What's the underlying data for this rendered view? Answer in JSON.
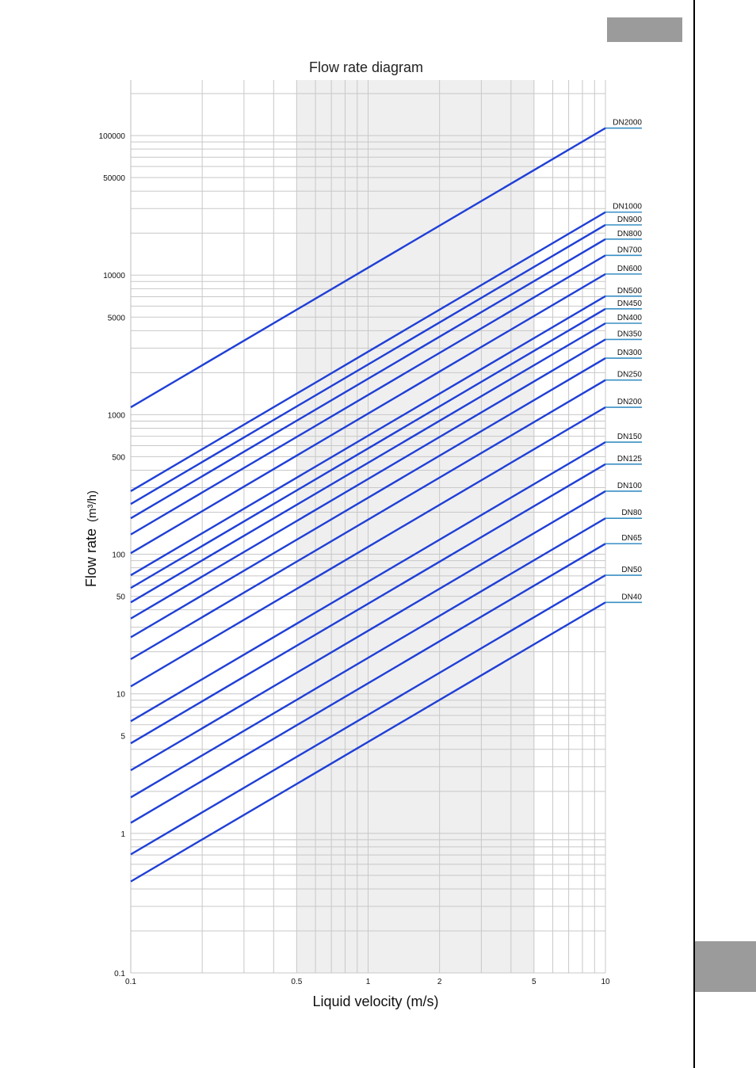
{
  "page": {
    "tab_color": "#9b9b9b"
  },
  "chart_data": {
    "type": "line",
    "title": "Flow rate diagram",
    "xlabel": "Liquid velocity (m/s)",
    "ylabel": "Flow rate",
    "ylabel_unit": "(m³/h)",
    "x_scale": "log",
    "y_scale": "log",
    "xlim": [
      0.1,
      10
    ],
    "ylim": [
      0.1,
      250000
    ],
    "x_ticks": [
      {
        "value": 0.1,
        "label": "0.1"
      },
      {
        "value": 0.5,
        "label": "0.5"
      },
      {
        "value": 1,
        "label": "1"
      },
      {
        "value": 2,
        "label": "2"
      },
      {
        "value": 5,
        "label": "5"
      },
      {
        "value": 10,
        "label": "10"
      }
    ],
    "y_ticks": [
      {
        "value": 0.1,
        "label": "0.1"
      },
      {
        "value": 1,
        "label": "1"
      },
      {
        "value": 5,
        "label": "5"
      },
      {
        "value": 10,
        "label": "10"
      },
      {
        "value": 50,
        "label": "50"
      },
      {
        "value": 100,
        "label": "100"
      },
      {
        "value": 500,
        "label": "500"
      },
      {
        "value": 1000,
        "label": "1000"
      },
      {
        "value": 5000,
        "label": "5000"
      },
      {
        "value": 10000,
        "label": "10000"
      },
      {
        "value": 50000,
        "label": "50000"
      },
      {
        "value": 100000,
        "label": "100000"
      }
    ],
    "grid": true,
    "highlight_band": {
      "x_from": 0.5,
      "x_to": 5,
      "color": "#efefef"
    },
    "line_color": "#1f3fd6",
    "label_underline_color": "#3a8fc4",
    "series": [
      {
        "name": "DN2000",
        "values": [
          1130,
          113100
        ]
      },
      {
        "name": "DN1000",
        "values": [
          283,
          28270
        ]
      },
      {
        "name": "DN900",
        "values": [
          229,
          22900
        ]
      },
      {
        "name": "DN800",
        "values": [
          181,
          18100
        ]
      },
      {
        "name": "DN700",
        "values": [
          138.5,
          13850
        ]
      },
      {
        "name": "DN600",
        "values": [
          101.8,
          10180
        ]
      },
      {
        "name": "DN500",
        "values": [
          70.7,
          7070
        ]
      },
      {
        "name": "DN450",
        "values": [
          57.3,
          5730
        ]
      },
      {
        "name": "DN400",
        "values": [
          45.2,
          4520
        ]
      },
      {
        "name": "DN350",
        "values": [
          34.6,
          3460
        ]
      },
      {
        "name": "DN300",
        "values": [
          25.4,
          2540
        ]
      },
      {
        "name": "DN250",
        "values": [
          17.7,
          1770
        ]
      },
      {
        "name": "DN200",
        "values": [
          11.3,
          1130
        ]
      },
      {
        "name": "DN150",
        "values": [
          6.36,
          636
        ]
      },
      {
        "name": "DN125",
        "values": [
          4.42,
          442
        ]
      },
      {
        "name": "DN100",
        "values": [
          2.83,
          283
        ]
      },
      {
        "name": "DN80",
        "values": [
          1.81,
          181
        ]
      },
      {
        "name": "DN65",
        "values": [
          1.19,
          119
        ]
      },
      {
        "name": "DN50",
        "values": [
          0.707,
          70.7
        ]
      },
      {
        "name": "DN40",
        "values": [
          0.452,
          45.2
        ]
      }
    ],
    "x": [
      0.1,
      10
    ]
  }
}
